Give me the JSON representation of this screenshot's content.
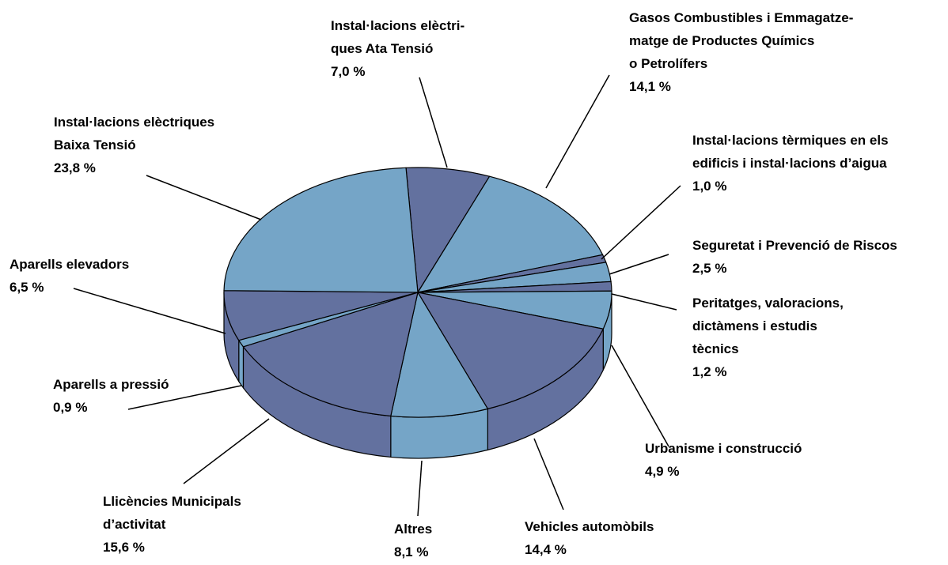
{
  "chart_data": {
    "type": "pie3d",
    "categories": [
      "Instal·lacions elèctri-\nques Ata Tensió",
      "Gasos Combustibles i Emmagatze-\nmatge de Productes Químics\no Petrolífers",
      "Instal·lacions tèrmiques en els\nedificis i instal·lacions d’aigua",
      "Seguretat i Prevenció de Riscos",
      "Peritatges, valoracions,\ndictàmens i estudis\ntècnics",
      "Urbanisme i construcció",
      "Vehicles automòbils",
      "Altres",
      "Llicències Municipals\nd’activitat",
      "Aparells a pressió",
      "Aparells elevadors",
      "Instal·lacions elèctriques\nBaixa Tensió"
    ],
    "values": [
      7.0,
      14.1,
      1.0,
      2.5,
      1.2,
      4.9,
      14.4,
      8.1,
      15.6,
      0.9,
      6.5,
      23.8
    ],
    "value_labels": [
      "7,0 %",
      "14,1 %",
      "1,0 %",
      "2,5 %",
      "1,2 %",
      "4,9 %",
      "14,4 %",
      "8,1 %",
      "15,6 %",
      "0,9 %",
      "6,5 %",
      "23,8 %"
    ],
    "colors": [
      "#63719f",
      "#75a5c7",
      "#63719f",
      "#75a5c7",
      "#63719f",
      "#75a5c7",
      "#63719f",
      "#75a5c7",
      "#63719f",
      "#75a5c7",
      "#63719f",
      "#75a5c7"
    ]
  }
}
